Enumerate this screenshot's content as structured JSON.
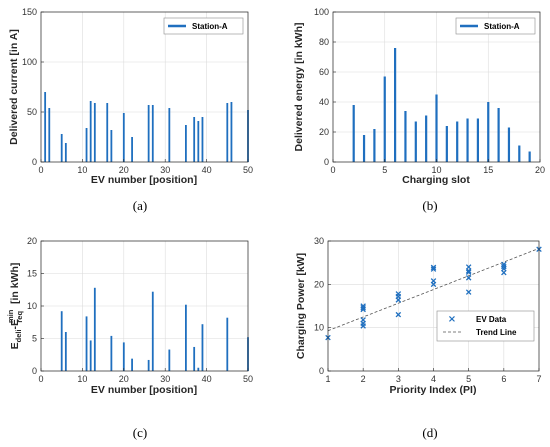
{
  "chart_data": [
    {
      "type": "bar",
      "caption": "(a)",
      "xlabel": "EV number [position]",
      "ylabel": "Delivered current [in A]",
      "xlim": [
        0,
        50
      ],
      "ylim": [
        0,
        150
      ],
      "xticks": [
        0,
        10,
        20,
        30,
        40,
        50
      ],
      "yticks": [
        0,
        50,
        100,
        150
      ],
      "grid": true,
      "legend_position": "top-right",
      "series": [
        {
          "name": "Station-A",
          "color": "#1f6fbf",
          "x": [
            1,
            2,
            5,
            6,
            11,
            12,
            13,
            16,
            17,
            20,
            22,
            26,
            27,
            31,
            35,
            37,
            38,
            39,
            45,
            46,
            50
          ],
          "y": [
            70,
            54,
            28,
            19,
            34,
            61,
            59,
            59,
            32,
            49,
            25,
            57,
            57,
            54,
            37,
            45,
            41,
            45,
            59,
            60,
            52
          ]
        }
      ]
    },
    {
      "type": "bar",
      "caption": "(b)",
      "xlabel": "Charging slot",
      "ylabel": "Delivered energy [in kWh]",
      "xlim": [
        0,
        20
      ],
      "ylim": [
        0,
        100
      ],
      "xticks": [
        0,
        5,
        10,
        15,
        20
      ],
      "yticks": [
        0,
        20,
        40,
        60,
        80,
        100
      ],
      "grid": true,
      "legend_position": "top-right",
      "series": [
        {
          "name": "Station-A",
          "color": "#1f6fbf",
          "x": [
            2,
            3,
            4,
            5,
            6,
            7,
            8,
            9,
            10,
            11,
            12,
            13,
            14,
            15,
            16,
            17,
            18,
            19
          ],
          "y": [
            38,
            18,
            22,
            57,
            76,
            34,
            27,
            31,
            45,
            24,
            27,
            29,
            29,
            40,
            36,
            23,
            11,
            7
          ]
        }
      ]
    },
    {
      "type": "bar",
      "caption": "(c)",
      "xlabel": "EV number [position]",
      "ylabel": "E_deli - E_req^min [in kWh]",
      "xlim": [
        0,
        50
      ],
      "ylim": [
        0,
        20
      ],
      "xticks": [
        0,
        10,
        20,
        30,
        40,
        50
      ],
      "yticks": [
        0,
        5,
        10,
        15,
        20
      ],
      "grid": true,
      "series": [
        {
          "color": "#1f6fbf",
          "x": [
            5,
            6,
            11,
            12,
            13,
            17,
            20,
            22,
            26,
            27,
            31,
            35,
            37,
            38,
            39,
            45,
            50
          ],
          "y": [
            9.2,
            6.0,
            8.4,
            4.7,
            12.8,
            5.4,
            4.4,
            1.9,
            1.7,
            12.2,
            3.3,
            10.2,
            3.7,
            0.5,
            7.2,
            8.2,
            5.2
          ]
        }
      ]
    },
    {
      "type": "scatter",
      "caption": "(d)",
      "xlabel": "Priority Index (PI)",
      "ylabel": "Charging Power [kW]",
      "xlim": [
        1,
        7
      ],
      "ylim": [
        0,
        30
      ],
      "xticks": [
        1,
        2,
        3,
        4,
        5,
        6,
        7
      ],
      "yticks": [
        0,
        10,
        20,
        30
      ],
      "grid": true,
      "legend_position": "lower-right",
      "series": [
        {
          "name": "EV Data",
          "color": "#1f6fbf",
          "marker": "x",
          "x": [
            1,
            2,
            2,
            2,
            2,
            2,
            2,
            3,
            3,
            3,
            3,
            4,
            4,
            4,
            4,
            5,
            5,
            5,
            5,
            5,
            6,
            6,
            6,
            6,
            7
          ],
          "y": [
            7.7,
            15.0,
            14.2,
            11.8,
            11.0,
            10.4,
            14.6,
            17.8,
            16.4,
            13.0,
            17.2,
            23.5,
            20.8,
            20.0,
            23.9,
            24.0,
            22.8,
            21.5,
            18.2,
            23.1,
            24.6,
            23.6,
            22.7,
            24.1,
            28.1
          ]
        },
        {
          "name": "Trend Line",
          "color": "#555555",
          "style": "dashed",
          "x": [
            1,
            7
          ],
          "y": [
            9.3,
            28.3
          ]
        }
      ]
    }
  ]
}
